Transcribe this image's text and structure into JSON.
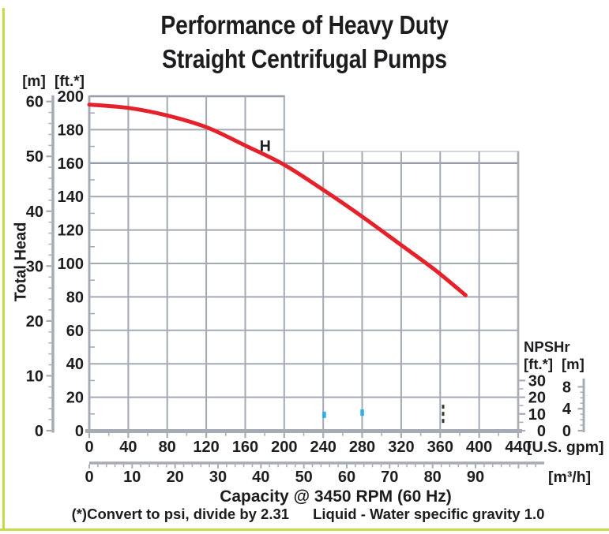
{
  "page": {
    "title_line1": "Performance of Heavy Duty",
    "title_line2": "Straight Centrifugal Pumps",
    "y_axis_title": "Total Head",
    "left_unit_m": "[m]",
    "left_unit_ft": "[ft.*]",
    "npshr_title": "NPSHr",
    "npshr_unit_ft": "[ft.*]",
    "npshr_unit_m": "[m]",
    "x_unit_gpm": "[U.S. gpm]",
    "x_unit_m3h": "[m³/h]",
    "footer_capacity": "Capacity @ 3450 RPM (60 Hz)",
    "footer_note_convert": "(*)Convert to psi, divide by 2.31",
    "footer_note_liquid": "Liquid - Water specific gravity 1.0"
  },
  "colors": {
    "curve_red": "#e5212b",
    "grid_gray": "#a3a9b2",
    "grid_dark": "#959ca7",
    "grid_light": "#d3d6da",
    "axis_bar": "#a7acb4",
    "text": "#1d1d1f",
    "page_border_green": "#c6da4a",
    "stray_cyan": "#2bb0e6",
    "stray_dark": "#35352a"
  },
  "chart_data": {
    "type": "line",
    "title": "Performance of Heavy Duty Straight Centrifugal Pumps",
    "xlabel": "Capacity @ 3450 RPM (60 Hz)",
    "ylabel": "Total Head",
    "legend": "none",
    "grid": "on",
    "x_axis_gpm": {
      "unit": "[U.S. gpm]",
      "range": [
        0,
        440
      ],
      "ticks": [
        0,
        40,
        80,
        120,
        160,
        200,
        240,
        280,
        320,
        360,
        400,
        440
      ],
      "minor_step": 20
    },
    "x_axis_m3h": {
      "unit": "[m³/h]",
      "range": [
        0,
        104
      ],
      "ticks": [
        0,
        10,
        20,
        30,
        40,
        50,
        60,
        70,
        80,
        90
      ],
      "minor_step": 2
    },
    "y_axis_ft": {
      "unit": "[ft.*]",
      "range": [
        0,
        200
      ],
      "ticks": [
        200,
        180,
        160,
        140,
        120,
        100,
        80,
        60,
        40,
        20,
        0
      ],
      "minor_step": 10
    },
    "y_axis_m": {
      "unit": "[m]",
      "range": [
        0,
        61
      ],
      "ticks": [
        60,
        50,
        40,
        30,
        20,
        10,
        0
      ],
      "minor_step": 2
    },
    "npshr_axis_ft": {
      "unit": "[ft.*]",
      "ticks": [
        30,
        20,
        10,
        0
      ],
      "minor_step": 5
    },
    "npshr_axis_m": {
      "unit": "[m]",
      "range": [
        0,
        9.5
      ],
      "ticks": [
        8,
        4,
        0
      ],
      "minor_step": 1
    },
    "grid_layout": {
      "upper_block_max_gpm": 200,
      "upper_block_min_ft": 160,
      "main_block_top_ft": 167
    },
    "series": [
      {
        "name": "H",
        "label": "H",
        "x_unit": "U.S. gpm",
        "y_unit": "ft",
        "points": [
          [
            0,
            195
          ],
          [
            40,
            193
          ],
          [
            80,
            188.5
          ],
          [
            120,
            181.5
          ],
          [
            160,
            170.5
          ],
          [
            200,
            159
          ],
          [
            240,
            144
          ],
          [
            280,
            128
          ],
          [
            320,
            111
          ],
          [
            355,
            96
          ],
          [
            386,
            81
          ]
        ],
        "label_pos_gpm_ft": [
          180.5,
          170.5
        ]
      }
    ],
    "stray_marks": [
      {
        "type": "dot",
        "gpm": 241,
        "ft": 9.5
      },
      {
        "type": "dot",
        "gpm": 280,
        "ft": 10.8
      },
      {
        "type": "dash",
        "gpm": 363,
        "ft_top": 15.5,
        "ft_bottom": 4.5
      }
    ]
  }
}
